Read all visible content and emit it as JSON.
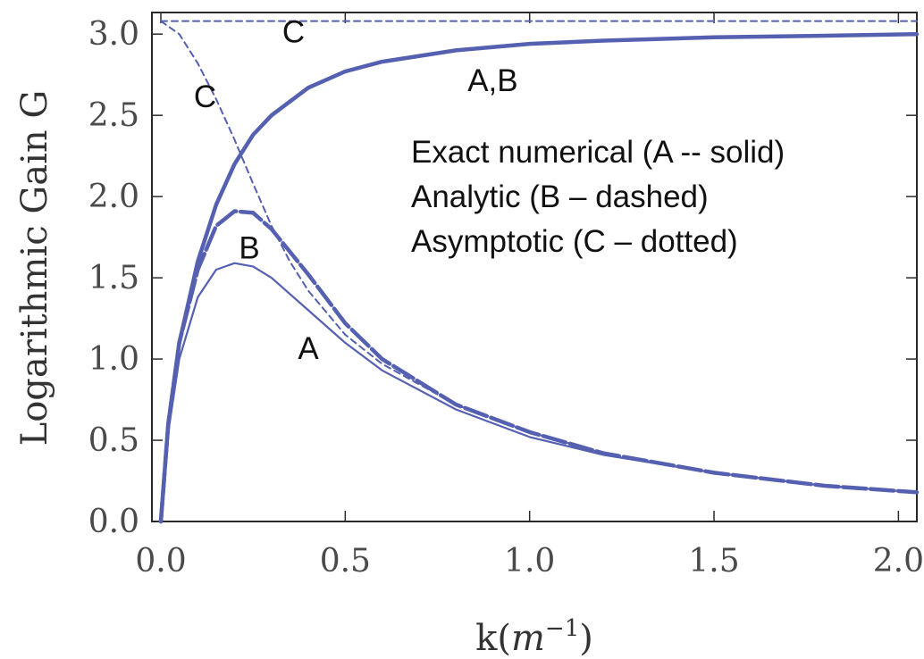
{
  "chart_data": {
    "type": "line",
    "title": "",
    "xlabel": "k(m⁻¹)",
    "ylabel": "Logarithmic Gain G",
    "xlim": [
      0.0,
      2.05
    ],
    "ylim": [
      0.0,
      3.1
    ],
    "x_ticks": [
      "0.0",
      "0.5",
      "1.0",
      "1.5",
      "2.0"
    ],
    "y_ticks": [
      "0.0",
      "0.5",
      "1.0",
      "1.5",
      "2.0",
      "2.5",
      "3.0"
    ],
    "grid": false,
    "color": "#5560b0",
    "series": [
      {
        "style": "solid-thin",
        "x": [
          0.0,
          0.02,
          0.05,
          0.1,
          0.15,
          0.2,
          0.25,
          0.3,
          0.4,
          0.5,
          0.6,
          0.8,
          1.0,
          1.2,
          1.5,
          1.8,
          2.05
        ],
        "y": [
          0.0,
          0.55,
          1.0,
          1.38,
          1.55,
          1.59,
          1.57,
          1.5,
          1.3,
          1.1,
          0.93,
          0.69,
          0.52,
          0.41,
          0.3,
          0.22,
          0.18
        ]
      },
      {
        "style": "dashed-thick",
        "x": [
          0.0,
          0.02,
          0.05,
          0.1,
          0.15,
          0.2,
          0.25,
          0.3,
          0.4,
          0.5,
          0.6,
          0.8,
          1.0,
          1.2,
          1.5,
          1.8,
          2.05
        ],
        "y": [
          0.0,
          0.6,
          1.1,
          1.55,
          1.82,
          1.91,
          1.9,
          1.8,
          1.52,
          1.22,
          1.0,
          0.72,
          0.55,
          0.42,
          0.3,
          0.22,
          0.18
        ]
      },
      {
        "style": "thick",
        "x": [
          0.0,
          0.02,
          0.05,
          0.1,
          0.15,
          0.2,
          0.25,
          0.3,
          0.4,
          0.5,
          0.6,
          0.8,
          1.0,
          1.2,
          1.5,
          1.8,
          2.05
        ],
        "y": [
          0.0,
          0.6,
          1.1,
          1.6,
          1.95,
          2.2,
          2.38,
          2.5,
          2.67,
          2.77,
          2.83,
          2.9,
          2.94,
          2.96,
          2.98,
          2.99,
          3.0
        ]
      },
      {
        "style": "dotted",
        "x": [
          0.0,
          0.05,
          0.1,
          0.15,
          0.2,
          0.25,
          0.3,
          0.35,
          0.4,
          0.5,
          0.6,
          0.8,
          1.0,
          1.2,
          1.5,
          1.8,
          2.05
        ],
        "y": [
          3.08,
          3.0,
          2.82,
          2.6,
          2.35,
          2.08,
          1.82,
          1.6,
          1.42,
          1.15,
          0.97,
          0.72,
          0.55,
          0.42,
          0.3,
          0.22,
          0.18
        ]
      },
      {
        "style": "dotted",
        "x": [
          0.0,
          2.05
        ],
        "y": [
          3.08,
          3.08
        ]
      }
    ],
    "annotations": [
      {
        "text": "C",
        "x": 0.36,
        "y": 2.95
      },
      {
        "text": "C",
        "x": 0.12,
        "y": 2.55
      },
      {
        "text": "A,B",
        "x": 0.9,
        "y": 2.65
      },
      {
        "text": "B",
        "x": 0.24,
        "y": 1.62
      },
      {
        "text": "A",
        "x": 0.4,
        "y": 1.0
      }
    ],
    "legend_position": "top-right",
    "legend": [
      "Exact numerical (A -- solid)",
      "Analytic (B – dashed)",
      "Asymptotic (C – dotted)"
    ]
  }
}
